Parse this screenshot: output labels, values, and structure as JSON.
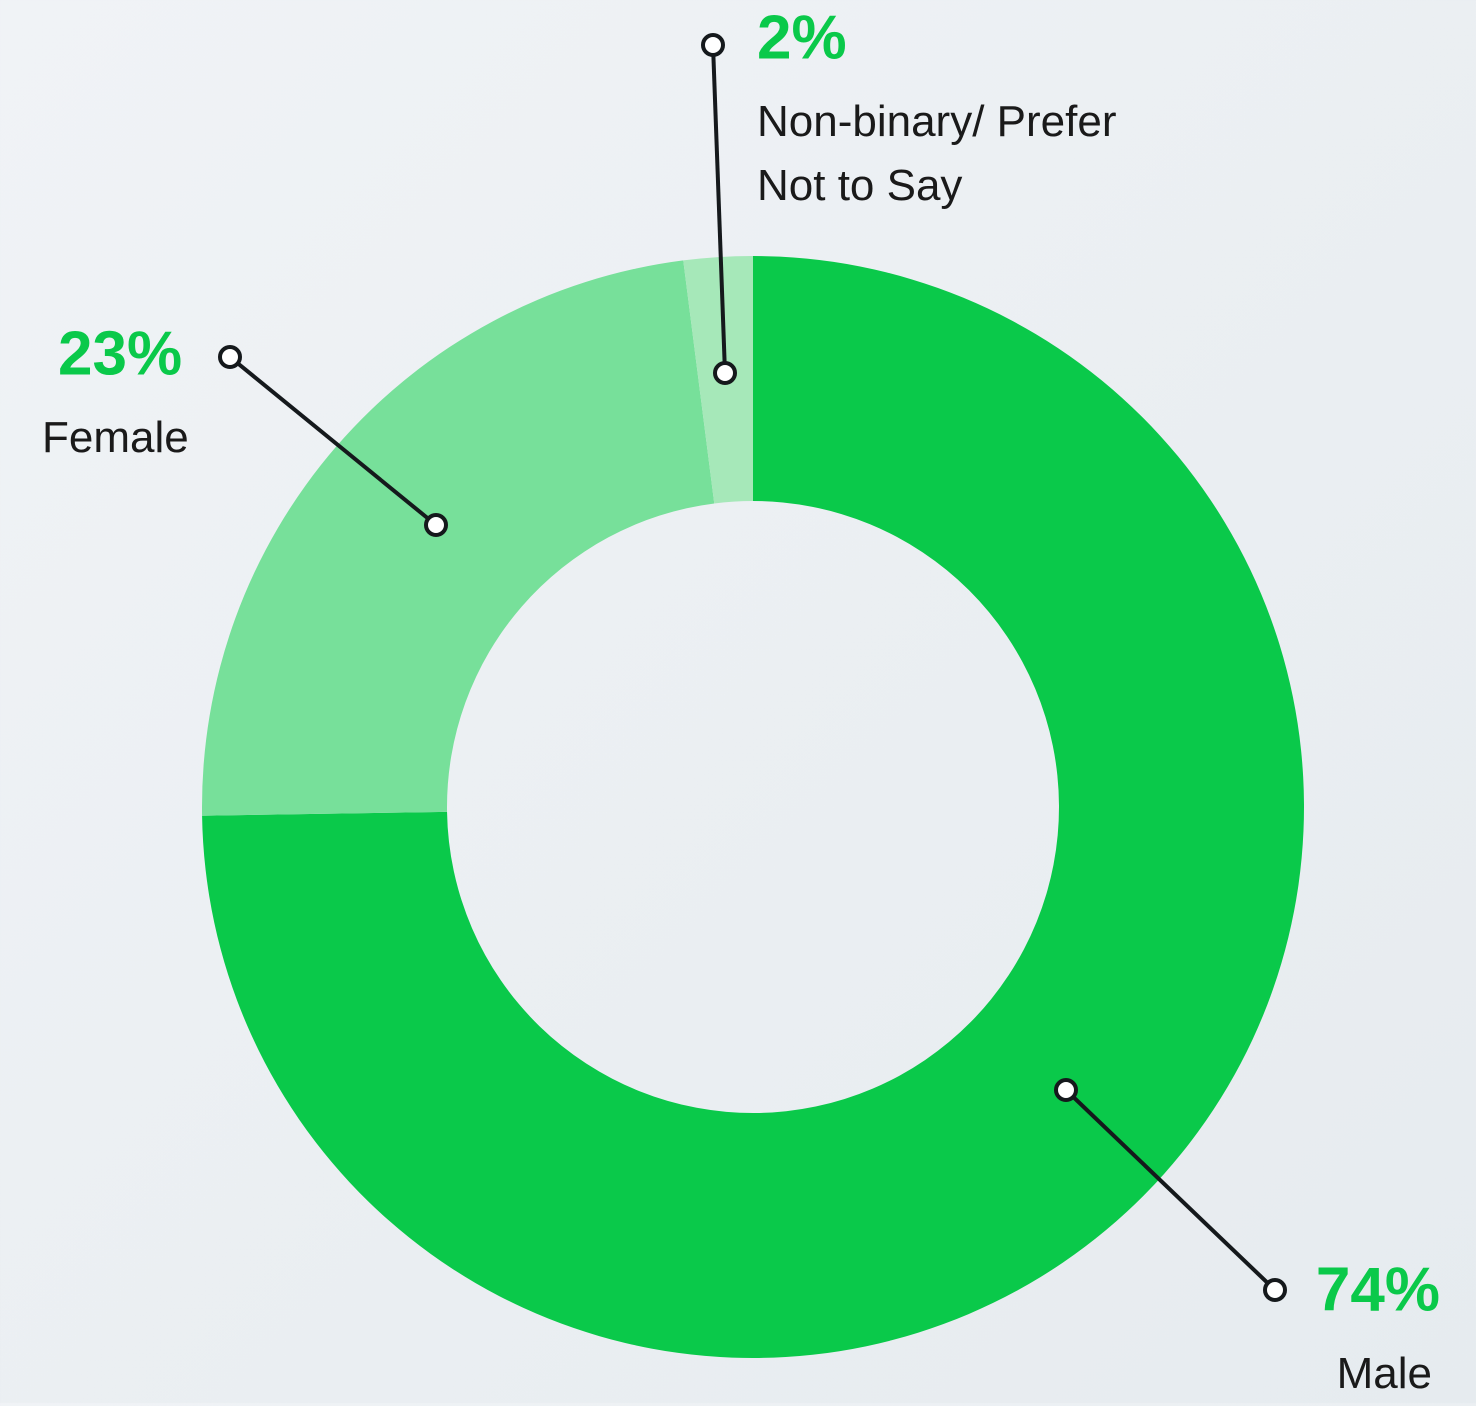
{
  "chart_data": {
    "type": "donut",
    "categories": [
      "Male",
      "Female",
      "Non-binary/ Prefer Not to Say"
    ],
    "values": [
      74,
      23,
      2
    ],
    "value_labels": [
      "74%",
      "23%",
      "2%"
    ],
    "colors": [
      "#0ac94a",
      "#77e09a",
      "#a6e8b9"
    ]
  }
}
